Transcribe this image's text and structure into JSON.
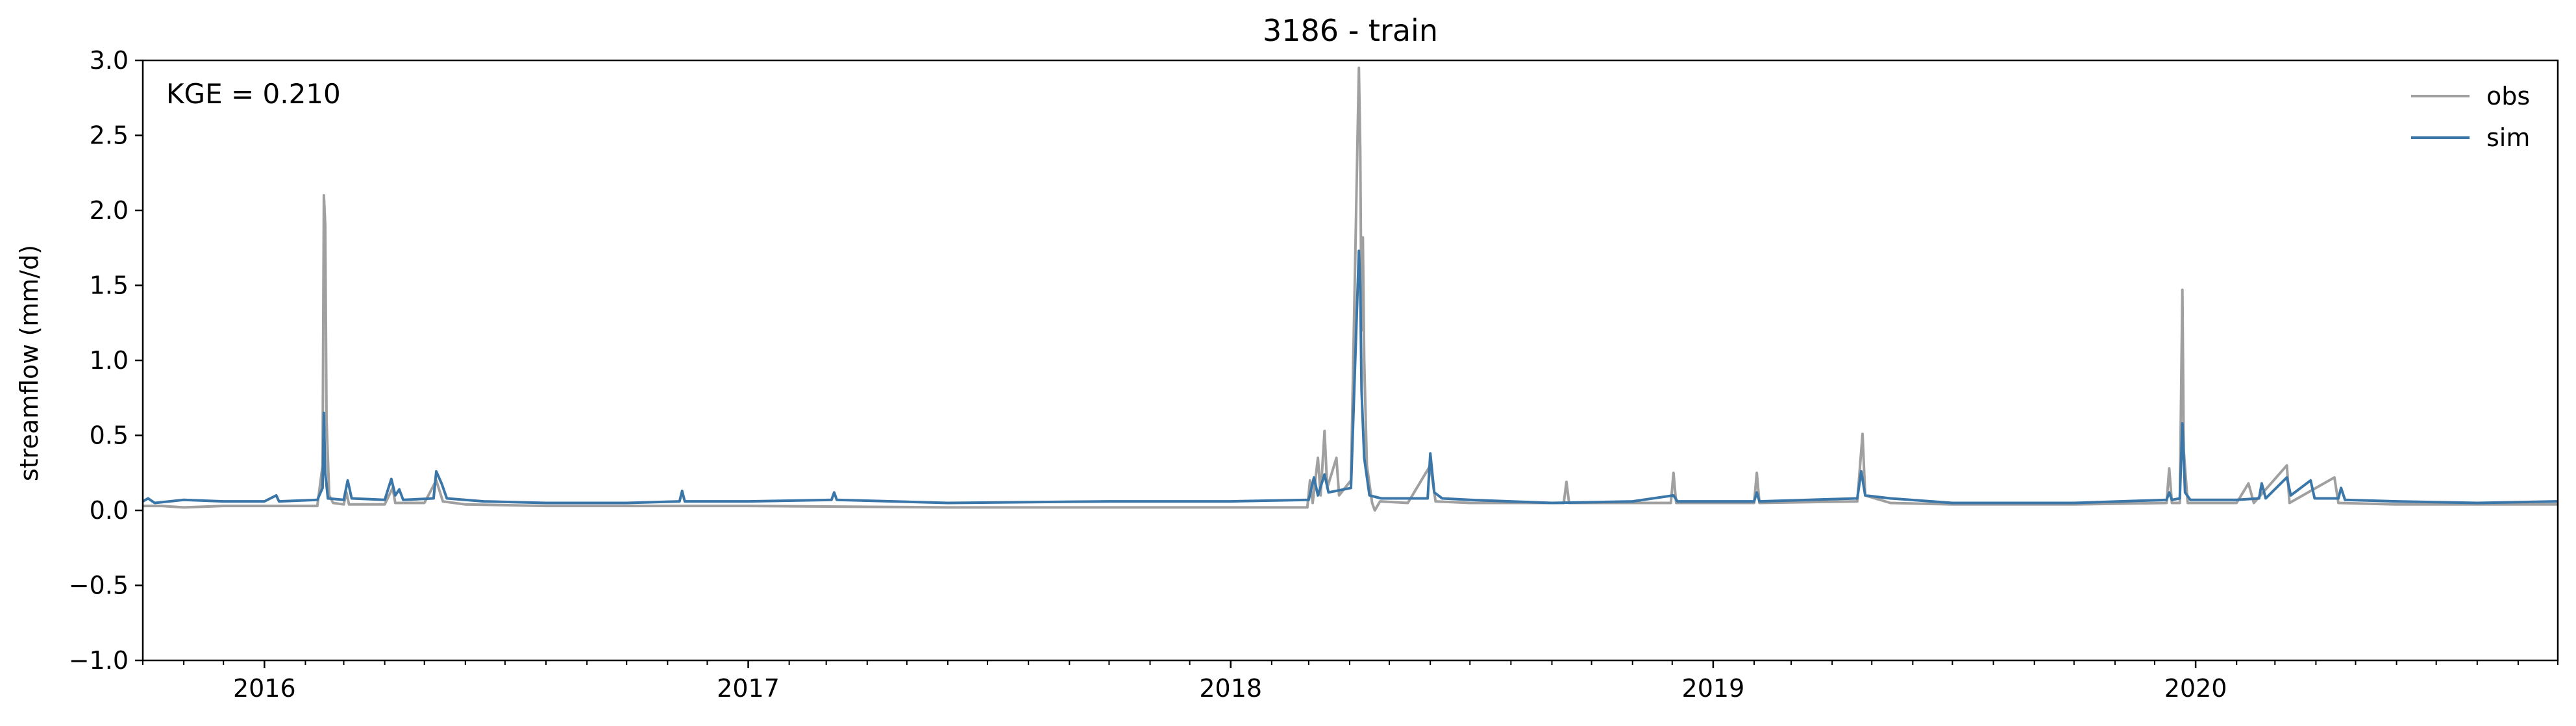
{
  "chart_data": {
    "type": "line",
    "title": "3186 - train",
    "xlabel": "",
    "ylabel": "streamflow (mm/d)",
    "annotation": "KGE = 0.210",
    "xlim": [
      "2015-10-01",
      "2020-10-01"
    ],
    "ylim": [
      -1.0,
      3.0
    ],
    "y_ticks": [
      -1.0,
      -0.5,
      0.0,
      0.5,
      1.0,
      1.5,
      2.0,
      2.5,
      3.0
    ],
    "y_tick_labels": [
      "−1.0",
      "−0.5",
      "0.0",
      "0.5",
      "1.0",
      "1.5",
      "2.0",
      "2.5",
      "3.0"
    ],
    "x_ticks": [
      "2016-01-01",
      "2017-01-01",
      "2018-01-01",
      "2019-01-01",
      "2020-01-01"
    ],
    "x_tick_labels": [
      "2016",
      "2017",
      "2018",
      "2019",
      "2020"
    ],
    "grid": false,
    "legend_position": "top-right",
    "colors": {
      "obs": "#a0a0a0",
      "sim": "#3a76a8"
    },
    "series": [
      {
        "name": "obs",
        "color": "#a0a0a0",
        "points": [
          [
            "2015-10-01",
            0.03
          ],
          [
            "2015-10-15",
            0.03
          ],
          [
            "2015-11-01",
            0.02
          ],
          [
            "2015-12-01",
            0.03
          ],
          [
            "2016-01-01",
            0.03
          ],
          [
            "2016-02-10",
            0.03
          ],
          [
            "2016-02-14",
            0.3
          ],
          [
            "2016-02-15",
            2.1
          ],
          [
            "2016-02-16",
            1.9
          ],
          [
            "2016-02-17",
            0.6
          ],
          [
            "2016-02-19",
            0.1
          ],
          [
            "2016-02-22",
            0.05
          ],
          [
            "2016-03-01",
            0.04
          ],
          [
            "2016-03-03",
            0.12
          ],
          [
            "2016-03-05",
            0.04
          ],
          [
            "2016-04-01",
            0.04
          ],
          [
            "2016-04-07",
            0.15
          ],
          [
            "2016-04-09",
            0.05
          ],
          [
            "2016-05-01",
            0.05
          ],
          [
            "2016-05-10",
            0.2
          ],
          [
            "2016-05-15",
            0.06
          ],
          [
            "2016-06-01",
            0.04
          ],
          [
            "2016-08-01",
            0.03
          ],
          [
            "2016-10-01",
            0.03
          ],
          [
            "2017-01-01",
            0.03
          ],
          [
            "2017-06-01",
            0.02
          ],
          [
            "2017-10-01",
            0.02
          ],
          [
            "2018-01-01",
            0.02
          ],
          [
            "2018-02-28",
            0.02
          ],
          [
            "2018-03-02",
            0.2
          ],
          [
            "2018-03-04",
            0.05
          ],
          [
            "2018-03-08",
            0.35
          ],
          [
            "2018-03-10",
            0.1
          ],
          [
            "2018-03-13",
            0.53
          ],
          [
            "2018-03-15",
            0.15
          ],
          [
            "2018-03-22",
            0.35
          ],
          [
            "2018-03-24",
            0.1
          ],
          [
            "2018-04-02",
            0.2
          ],
          [
            "2018-04-08",
            2.95
          ],
          [
            "2018-04-09",
            2.4
          ],
          [
            "2018-04-10",
            1.2
          ],
          [
            "2018-04-11",
            1.82
          ],
          [
            "2018-04-12",
            1.0
          ],
          [
            "2018-04-14",
            0.3
          ],
          [
            "2018-04-18",
            0.05
          ],
          [
            "2018-04-20",
            0.0
          ],
          [
            "2018-04-24",
            0.06
          ],
          [
            "2018-05-15",
            0.05
          ],
          [
            "2018-06-01",
            0.3
          ],
          [
            "2018-06-05",
            0.06
          ],
          [
            "2018-07-01",
            0.05
          ],
          [
            "2018-09-10",
            0.05
          ],
          [
            "2018-09-12",
            0.19
          ],
          [
            "2018-09-14",
            0.05
          ],
          [
            "2018-11-30",
            0.05
          ],
          [
            "2018-12-02",
            0.25
          ],
          [
            "2018-12-04",
            0.05
          ],
          [
            "2019-02-01",
            0.05
          ],
          [
            "2019-02-03",
            0.25
          ],
          [
            "2019-02-05",
            0.05
          ],
          [
            "2019-04-20",
            0.06
          ],
          [
            "2019-04-24",
            0.51
          ],
          [
            "2019-04-26",
            0.1
          ],
          [
            "2019-05-15",
            0.05
          ],
          [
            "2019-07-01",
            0.04
          ],
          [
            "2019-10-01",
            0.04
          ],
          [
            "2019-12-10",
            0.05
          ],
          [
            "2019-12-12",
            0.28
          ],
          [
            "2019-12-14",
            0.05
          ],
          [
            "2019-12-20",
            0.05
          ],
          [
            "2019-12-22",
            1.47
          ],
          [
            "2019-12-23",
            0.4
          ],
          [
            "2019-12-26",
            0.05
          ],
          [
            "2020-02-01",
            0.05
          ],
          [
            "2020-02-10",
            0.18
          ],
          [
            "2020-02-14",
            0.05
          ],
          [
            "2020-03-10",
            0.3
          ],
          [
            "2020-03-12",
            0.05
          ],
          [
            "2020-04-15",
            0.22
          ],
          [
            "2020-04-18",
            0.05
          ],
          [
            "2020-06-01",
            0.04
          ],
          [
            "2020-10-01",
            0.04
          ]
        ]
      },
      {
        "name": "sim",
        "color": "#3a76a8",
        "points": [
          [
            "2015-10-01",
            0.06
          ],
          [
            "2015-10-05",
            0.08
          ],
          [
            "2015-10-10",
            0.05
          ],
          [
            "2015-11-01",
            0.07
          ],
          [
            "2015-12-01",
            0.06
          ],
          [
            "2016-01-01",
            0.06
          ],
          [
            "2016-01-10",
            0.1
          ],
          [
            "2016-01-12",
            0.06
          ],
          [
            "2016-02-10",
            0.07
          ],
          [
            "2016-02-14",
            0.15
          ],
          [
            "2016-02-15",
            0.65
          ],
          [
            "2016-02-16",
            0.25
          ],
          [
            "2016-02-18",
            0.08
          ],
          [
            "2016-03-01",
            0.07
          ],
          [
            "2016-03-04",
            0.2
          ],
          [
            "2016-03-07",
            0.08
          ],
          [
            "2016-04-01",
            0.07
          ],
          [
            "2016-04-06",
            0.21
          ],
          [
            "2016-04-09",
            0.1
          ],
          [
            "2016-04-12",
            0.14
          ],
          [
            "2016-04-15",
            0.07
          ],
          [
            "2016-05-08",
            0.08
          ],
          [
            "2016-05-10",
            0.26
          ],
          [
            "2016-05-14",
            0.18
          ],
          [
            "2016-05-18",
            0.08
          ],
          [
            "2016-06-15",
            0.06
          ],
          [
            "2016-08-01",
            0.05
          ],
          [
            "2016-10-01",
            0.05
          ],
          [
            "2016-11-10",
            0.06
          ],
          [
            "2016-11-12",
            0.13
          ],
          [
            "2016-11-14",
            0.06
          ],
          [
            "2017-01-01",
            0.06
          ],
          [
            "2017-03-05",
            0.07
          ],
          [
            "2017-03-07",
            0.12
          ],
          [
            "2017-03-09",
            0.07
          ],
          [
            "2017-06-01",
            0.05
          ],
          [
            "2017-10-01",
            0.06
          ],
          [
            "2018-01-01",
            0.06
          ],
          [
            "2018-03-01",
            0.07
          ],
          [
            "2018-03-05",
            0.22
          ],
          [
            "2018-03-08",
            0.1
          ],
          [
            "2018-03-13",
            0.24
          ],
          [
            "2018-03-16",
            0.12
          ],
          [
            "2018-04-02",
            0.15
          ],
          [
            "2018-04-08",
            1.73
          ],
          [
            "2018-04-09",
            1.5
          ],
          [
            "2018-04-10",
            0.8
          ],
          [
            "2018-04-12",
            0.35
          ],
          [
            "2018-04-16",
            0.1
          ],
          [
            "2018-04-25",
            0.08
          ],
          [
            "2018-05-30",
            0.08
          ],
          [
            "2018-06-01",
            0.38
          ],
          [
            "2018-06-04",
            0.12
          ],
          [
            "2018-06-10",
            0.08
          ],
          [
            "2018-07-01",
            0.07
          ],
          [
            "2018-09-01",
            0.05
          ],
          [
            "2018-11-01",
            0.06
          ],
          [
            "2018-12-02",
            0.1
          ],
          [
            "2018-12-05",
            0.06
          ],
          [
            "2019-02-01",
            0.06
          ],
          [
            "2019-02-03",
            0.12
          ],
          [
            "2019-02-05",
            0.06
          ],
          [
            "2019-04-20",
            0.08
          ],
          [
            "2019-04-23",
            0.26
          ],
          [
            "2019-04-26",
            0.1
          ],
          [
            "2019-05-15",
            0.08
          ],
          [
            "2019-07-01",
            0.05
          ],
          [
            "2019-10-01",
            0.05
          ],
          [
            "2019-12-10",
            0.07
          ],
          [
            "2019-12-12",
            0.12
          ],
          [
            "2019-12-14",
            0.07
          ],
          [
            "2019-12-20",
            0.08
          ],
          [
            "2019-12-22",
            0.58
          ],
          [
            "2019-12-24",
            0.12
          ],
          [
            "2019-12-28",
            0.07
          ],
          [
            "2020-02-01",
            0.07
          ],
          [
            "2020-02-18",
            0.08
          ],
          [
            "2020-02-20",
            0.18
          ],
          [
            "2020-02-23",
            0.08
          ],
          [
            "2020-03-10",
            0.22
          ],
          [
            "2020-03-13",
            0.1
          ],
          [
            "2020-03-28",
            0.2
          ],
          [
            "2020-03-31",
            0.08
          ],
          [
            "2020-04-18",
            0.08
          ],
          [
            "2020-04-20",
            0.15
          ],
          [
            "2020-04-23",
            0.07
          ],
          [
            "2020-06-01",
            0.06
          ],
          [
            "2020-08-01",
            0.05
          ],
          [
            "2020-10-01",
            0.06
          ]
        ]
      }
    ]
  }
}
